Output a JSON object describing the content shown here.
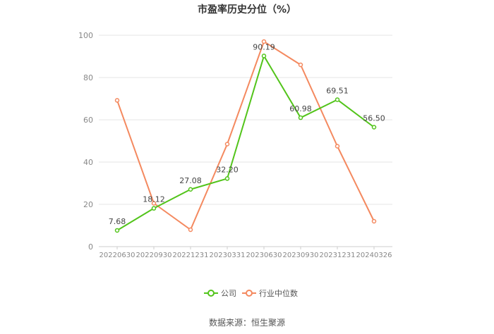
{
  "chart_data": {
    "type": "line",
    "title": "市盈率历史分位（%）",
    "categories": [
      "20220630",
      "20220930",
      "20221231",
      "20230331",
      "20230630",
      "20230930",
      "20231231",
      "20240326"
    ],
    "ylim": [
      0,
      100
    ],
    "yticks": [
      0,
      20,
      40,
      60,
      80,
      100
    ],
    "grid": true,
    "legend_position": "bottom-center",
    "series": [
      {
        "name": "公司",
        "color": "#52c41a",
        "values": [
          7.68,
          18.12,
          27.08,
          32.2,
          90.19,
          60.98,
          69.51,
          56.5
        ],
        "labels": [
          "7.68",
          "18.12",
          "27.08",
          "32.20",
          "90.19",
          "60.98",
          "69.51",
          "56.50"
        ]
      },
      {
        "name": "行业中位数",
        "color": "#f4895f",
        "values": [
          69.2,
          20.5,
          8.0,
          48.5,
          97.0,
          86.0,
          47.5,
          12.0
        ]
      }
    ],
    "source": "数据来源：恒生聚源"
  }
}
